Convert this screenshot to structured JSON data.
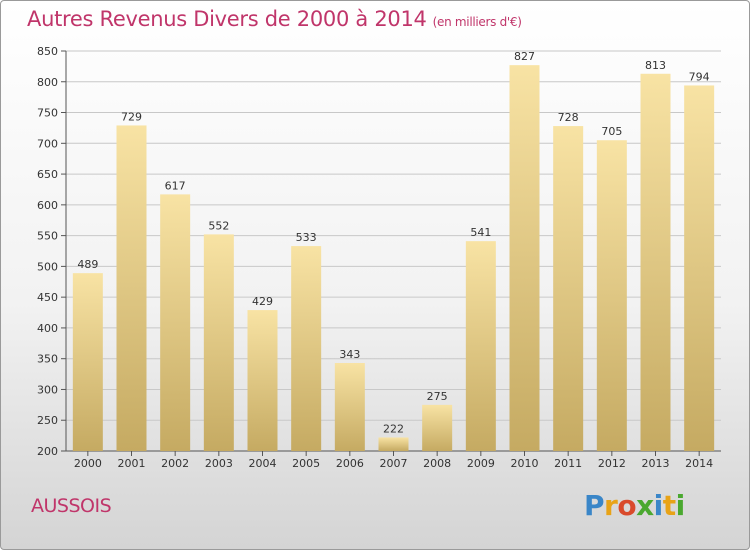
{
  "title": "Autres Revenus Divers de 2000 à 2014",
  "subtitle": "(en milliers d'€)",
  "commune": "AUSSOIS",
  "brand": {
    "text": "Proxiti",
    "letters": [
      {
        "ch": "P",
        "color": "#3a86c8"
      },
      {
        "ch": "r",
        "color": "#e8a317"
      },
      {
        "ch": "o",
        "color": "#d94a2b"
      },
      {
        "ch": "x",
        "color": "#4aa82f"
      },
      {
        "ch": "i",
        "color": "#3a86c8"
      },
      {
        "ch": "t",
        "color": "#e8a317"
      },
      {
        "ch": "i",
        "color": "#4aa82f"
      }
    ]
  },
  "colors": {
    "title": "#c0356a",
    "bar_light": "#f7e0a0",
    "bar_dark": "#c8ae66",
    "grid": "#c8c8c8"
  },
  "chart_data": {
    "type": "bar",
    "title": "Autres Revenus Divers de 2000 à 2014",
    "subtitle": "(en milliers d'€)",
    "categories": [
      "2000",
      "2001",
      "2002",
      "2003",
      "2004",
      "2005",
      "2006",
      "2007",
      "2008",
      "2009",
      "2010",
      "2011",
      "2012",
      "2013",
      "2014"
    ],
    "values": [
      489,
      729,
      617,
      552,
      429,
      533,
      343,
      222,
      275,
      541,
      827,
      728,
      705,
      813,
      794
    ],
    "ylim": [
      200,
      850
    ],
    "yticks": [
      200,
      250,
      300,
      350,
      400,
      450,
      500,
      550,
      600,
      650,
      700,
      750,
      800,
      850
    ],
    "grid": true,
    "legend": "none"
  }
}
